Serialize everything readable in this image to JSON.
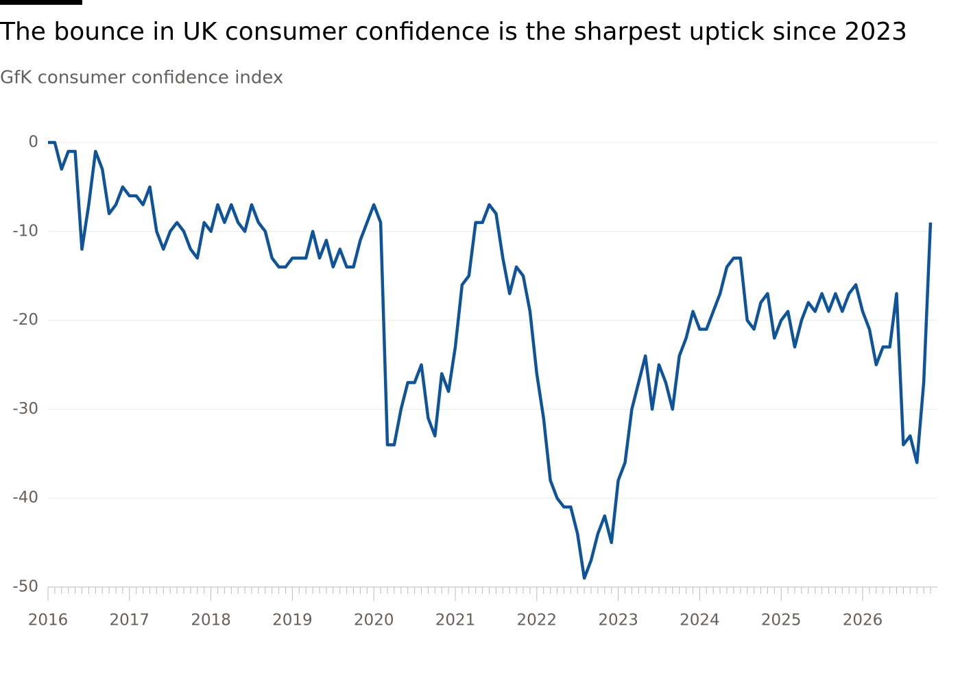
{
  "chart_data": {
    "type": "line",
    "title": "The bounce in UK consumer confidence is the sharpest uptick since 2023",
    "subtitle": "GfK consumer confidence index",
    "categories": [
      "2016",
      null,
      null,
      null,
      null,
      null,
      null,
      null,
      null,
      null,
      null,
      null,
      "2017",
      null,
      null,
      null,
      null,
      null,
      null,
      null,
      null,
      null,
      null,
      null,
      "2018",
      null,
      null,
      null,
      null,
      null,
      null,
      null,
      null,
      null,
      null,
      null,
      "2019",
      null,
      null,
      null,
      null,
      null,
      null,
      null,
      null,
      null,
      null,
      null,
      "2020",
      null,
      null,
      null,
      null,
      null,
      null,
      null,
      null,
      null,
      null,
      null,
      "2021",
      null,
      null,
      null,
      null,
      null,
      null,
      null,
      null,
      null,
      null,
      null,
      "2022",
      null,
      null,
      null,
      null,
      null,
      null,
      null,
      null,
      null,
      null,
      null,
      "2023",
      null,
      null,
      null,
      null,
      null,
      null,
      null,
      null,
      null,
      null,
      null,
      "2024",
      null,
      null,
      null,
      null,
      null,
      null,
      null,
      null,
      null,
      null,
      null,
      "2025",
      null,
      null,
      null,
      null,
      null,
      null,
      null,
      null,
      null,
      null,
      null,
      "2026",
      null,
      null,
      null,
      null,
      null,
      null,
      null,
      null,
      null,
      null
    ],
    "series": [
      {
        "name": "GfK consumer confidence index",
        "color": "#0f5499",
        "values": [
          0,
          0,
          -3,
          -1,
          -1,
          -12,
          -7,
          -1,
          -3,
          -8,
          -7,
          -5,
          -6,
          -6,
          -7,
          -5,
          -10,
          -12,
          -10,
          -9,
          -10,
          -12,
          -13,
          -9,
          -10,
          -7,
          -9,
          -7,
          -9,
          -10,
          -7,
          -9,
          -10,
          -13,
          -14,
          -14,
          -13,
          -13,
          -13,
          -10,
          -13,
          -11,
          -14,
          -12,
          -14,
          -14,
          -11,
          -9,
          -7,
          -9,
          -34,
          -34,
          -30,
          -27,
          -27,
          -25,
          -31,
          -33,
          -26,
          -28,
          -23,
          -16,
          -15,
          -9,
          -9,
          -7,
          -8,
          -13,
          -17,
          -14,
          -15,
          -19,
          -26,
          -31,
          -38,
          -40,
          -41,
          -41,
          -44,
          -49,
          -47,
          -44,
          -42,
          -45,
          -38,
          -36,
          -30,
          -27,
          -24,
          -30,
          -25,
          -27,
          -30,
          -24,
          -22,
          -19,
          -21,
          -21,
          -19,
          -17,
          -14,
          -13,
          -13,
          -20,
          -21,
          -18,
          -17,
          -22,
          -20,
          -19,
          -23,
          -20,
          -18,
          -19,
          -17,
          -19,
          -17,
          -19,
          -17,
          -16,
          -19,
          -21,
          -25,
          -23,
          -23,
          -17,
          -34,
          -33,
          -36,
          -27,
          -9
        ]
      }
    ],
    "ylim": [
      -50,
      0
    ],
    "yticks": [
      0,
      -10,
      -20,
      -30,
      -40,
      -50
    ],
    "grid": true
  }
}
